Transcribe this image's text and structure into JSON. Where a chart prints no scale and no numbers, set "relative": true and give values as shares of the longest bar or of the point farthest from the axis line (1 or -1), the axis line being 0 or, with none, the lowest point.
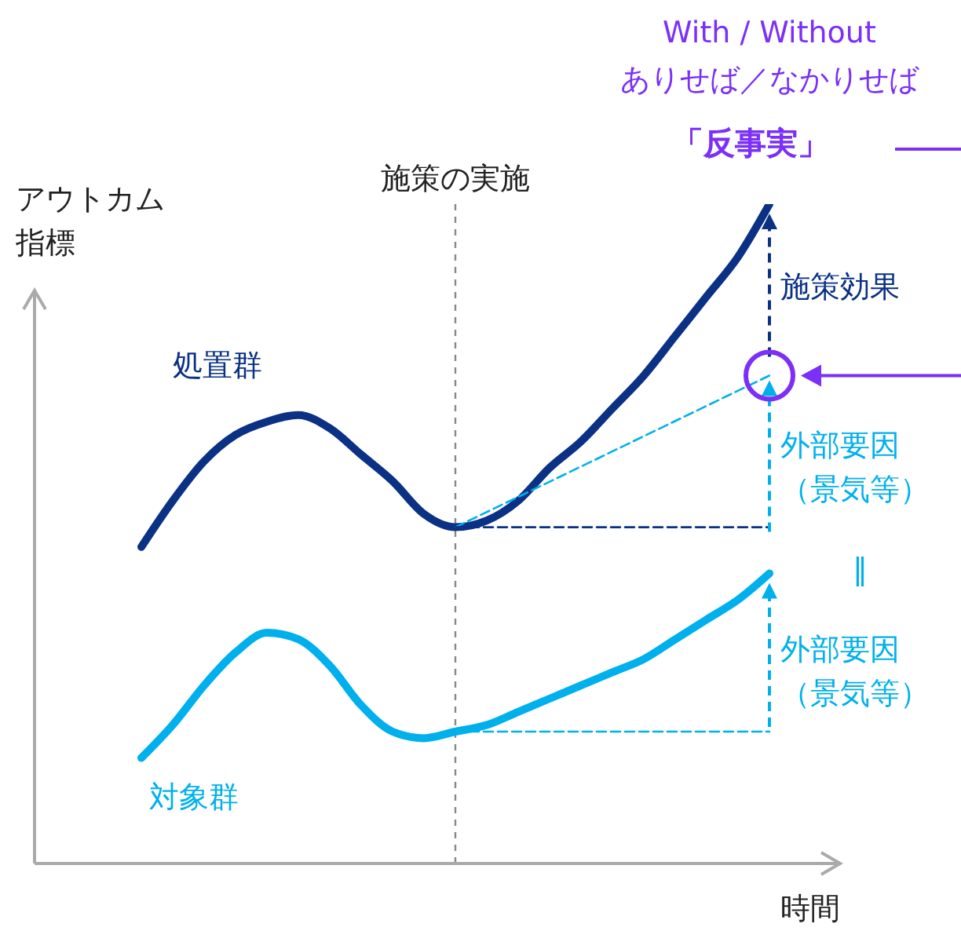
{
  "chart_data": {
    "type": "line",
    "relative": true,
    "xlabel": "時間",
    "ylabel": "アウトカム指標",
    "grid": false,
    "legend": false,
    "categories": [
      null,
      null,
      null,
      null,
      null,
      null,
      null,
      null,
      null,
      null,
      null,
      null,
      null,
      null,
      null,
      null,
      null,
      null,
      null,
      null,
      null,
      null,
      null,
      null,
      null,
      null
    ],
    "series": [
      {
        "name": "処置群",
        "color": "#0a3184",
        "line_style": "solid",
        "values": [
          null,
          null,
          null,
          0.48,
          0.55,
          0.61,
          0.65,
          0.67,
          0.68,
          0.66,
          0.62,
          0.58,
          0.53,
          0.51,
          0.52,
          0.55,
          0.6,
          0.64,
          0.69,
          0.74,
          0.8,
          0.86,
          0.92,
          1.0,
          null,
          null
        ]
      },
      {
        "name": "対象群",
        "color": "#00b0ec",
        "line_style": "solid",
        "values": [
          null,
          null,
          null,
          0.16,
          0.21,
          0.27,
          0.32,
          0.35,
          0.34,
          0.3,
          0.24,
          0.2,
          0.19,
          0.2,
          0.21,
          0.23,
          0.25,
          0.27,
          0.29,
          0.31,
          0.34,
          0.37,
          0.4,
          0.44,
          null,
          null
        ]
      },
      {
        "type": "line",
        "color": "#00b0ec",
        "line_style": "dashed",
        "values": [
          null,
          null,
          null,
          null,
          null,
          null,
          null,
          null,
          null,
          null,
          null,
          null,
          null,
          0.51,
          null,
          null,
          null,
          null,
          null,
          null,
          null,
          null,
          null,
          0.74,
          null,
          null
        ]
      },
      {
        "type": "line",
        "color": "#0a3184",
        "line_style": "dashed",
        "values": [
          null,
          null,
          null,
          null,
          null,
          null,
          null,
          null,
          null,
          null,
          null,
          null,
          null,
          0.51,
          null,
          null,
          null,
          null,
          null,
          null,
          null,
          null,
          null,
          0.51,
          null,
          null
        ]
      },
      {
        "type": "line",
        "color": "#00b0ec",
        "line_style": "dashed",
        "values": [
          null,
          null,
          null,
          null,
          null,
          null,
          null,
          null,
          null,
          null,
          null,
          null,
          null,
          0.2,
          null,
          null,
          null,
          null,
          null,
          null,
          null,
          null,
          null,
          0.2,
          null,
          null
        ]
      }
    ],
    "annotations": [
      "With / Without",
      "ありせば／なかりせば",
      "「反事実」",
      "施策効果",
      "外部要因（景気等）",
      "‖",
      "外部要因（景気等）",
      "施策の実施"
    ]
  }
}
